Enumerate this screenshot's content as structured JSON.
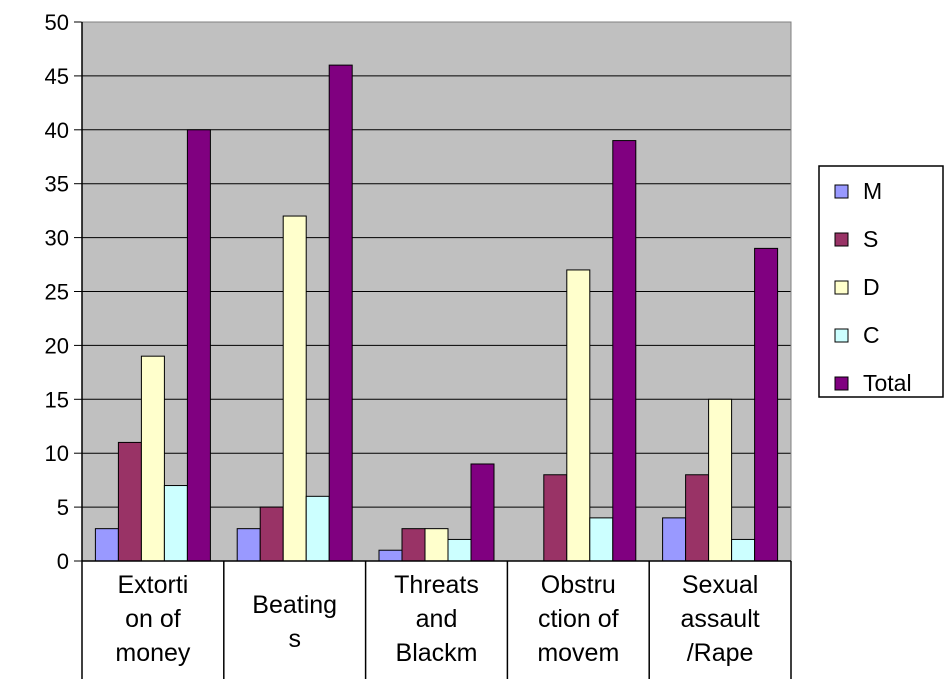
{
  "chart_data": {
    "type": "bar",
    "categories": [
      [
        "Extorti",
        "on of",
        "money"
      ],
      [
        "Beating",
        "s"
      ],
      [
        "Threats",
        "and",
        "Blackm"
      ],
      [
        "Obstru",
        "ction of",
        "movem"
      ],
      [
        "Sexual",
        "assault",
        "/Rape"
      ]
    ],
    "series": [
      {
        "name": "M",
        "color": "#9999ff",
        "values": [
          3,
          3,
          1,
          0,
          4
        ]
      },
      {
        "name": "S",
        "color": "#993366",
        "values": [
          11,
          5,
          3,
          8,
          8
        ]
      },
      {
        "name": "D",
        "color": "#ffffcc",
        "values": [
          19,
          32,
          3,
          27,
          15
        ]
      },
      {
        "name": "C",
        "color": "#ccffff",
        "values": [
          7,
          6,
          2,
          4,
          2
        ]
      },
      {
        "name": "Total",
        "color": "#800080",
        "values": [
          40,
          46,
          9,
          39,
          29
        ]
      }
    ],
    "ylim": [
      0,
      50
    ],
    "yticks": [
      0,
      5,
      10,
      15,
      20,
      25,
      30,
      35,
      40,
      45,
      50
    ],
    "grid": true,
    "plot_background": "#c0c0c0",
    "legend_position": "right"
  }
}
